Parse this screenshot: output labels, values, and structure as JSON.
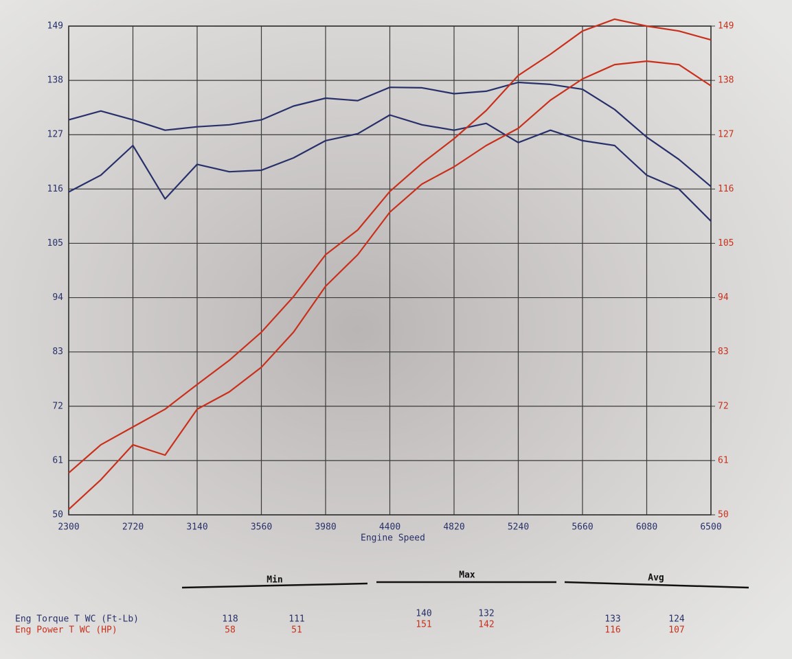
{
  "chart_data": {
    "type": "line",
    "xlabel": "Engine Speed",
    "x": [
      2300,
      2510,
      2720,
      2930,
      3140,
      3350,
      3560,
      3770,
      3980,
      4190,
      4400,
      4610,
      4820,
      5030,
      5240,
      5450,
      5660,
      5870,
      6080,
      6290,
      6500
    ],
    "xlim": [
      2300,
      6500
    ],
    "xticks": [
      2300,
      2720,
      3140,
      3560,
      3980,
      4400,
      4820,
      5240,
      5660,
      6080,
      6500
    ],
    "ylim": [
      50,
      149
    ],
    "yticks": [
      50,
      61,
      72,
      83,
      94,
      105,
      116,
      127,
      138,
      149
    ],
    "y2lim": [
      50,
      149
    ],
    "y2ticks": [
      50,
      61,
      72,
      83,
      94,
      105,
      116,
      127,
      138,
      149
    ],
    "grid": true,
    "series": [
      {
        "color": "#27306a",
        "values": [
          130.0,
          131.8,
          130.0,
          127.9,
          128.6,
          129.0,
          130.0,
          132.8,
          134.4,
          133.9,
          136.6,
          136.5,
          135.3,
          135.8,
          137.6,
          137.2,
          136.2,
          132.1,
          126.5,
          122.0,
          116.5
        ]
      },
      {
        "color": "#27306a",
        "values": [
          115.4,
          118.8,
          124.8,
          114.0,
          121.0,
          119.5,
          119.8,
          122.3,
          125.8,
          127.2,
          131.0,
          129.0,
          127.9,
          129.3,
          125.4,
          127.9,
          125.8,
          124.8,
          118.8,
          116.0,
          109.5
        ]
      },
      {
        "color": "#c9301c",
        "axis": "y2",
        "values": [
          58.5,
          64.2,
          67.8,
          71.4,
          76.4,
          81.3,
          87.0,
          94.2,
          102.7,
          107.7,
          115.5,
          121.2,
          126.2,
          131.9,
          139.0,
          143.3,
          148.0,
          150.4,
          149.0,
          148.0,
          146.2
        ]
      },
      {
        "color": "#c9301c",
        "axis": "y2",
        "values": [
          51.1,
          57.1,
          64.2,
          62.1,
          71.4,
          74.9,
          79.9,
          87.0,
          96.3,
          102.7,
          111.3,
          117.0,
          120.5,
          124.8,
          128.3,
          134.0,
          138.3,
          141.2,
          141.9,
          141.2,
          136.9
        ]
      }
    ]
  },
  "summary_table": {
    "columns": [
      "Min",
      "Max",
      "Avg"
    ],
    "rows": [
      {
        "label": "Eng Torque T WC (Ft-Lb)",
        "color": "#27306a",
        "values": [
          118,
          111,
          140,
          132,
          133,
          124
        ]
      },
      {
        "label": "Eng Power T WC (HP)",
        "color": "#c9301c",
        "values": [
          58,
          51,
          151,
          142,
          116,
          107
        ]
      }
    ]
  }
}
